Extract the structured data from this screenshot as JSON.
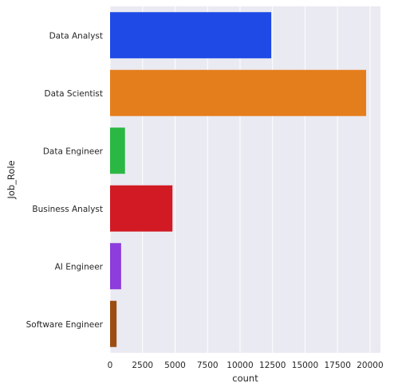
{
  "chart_data": {
    "type": "bar",
    "orientation": "horizontal",
    "categories": [
      "Data Analyst",
      "Data Scientist",
      "Data Engineer",
      "Business Analyst",
      "AI Engineer",
      "Software Engineer"
    ],
    "values": [
      12400,
      19700,
      1150,
      4800,
      850,
      500
    ],
    "colors": [
      "#1f4ae6",
      "#e47e1c",
      "#2bb743",
      "#d11a23",
      "#8c3ddb",
      "#9c4e12"
    ],
    "xlabel": "count",
    "ylabel": "Job_Role",
    "xlim": [
      0,
      20800
    ],
    "xticks": [
      0,
      2500,
      5000,
      7500,
      10000,
      12500,
      15000,
      17500,
      20000
    ],
    "grid": true,
    "background": "#eaeaf2",
    "grid_color": "#ffffff"
  }
}
